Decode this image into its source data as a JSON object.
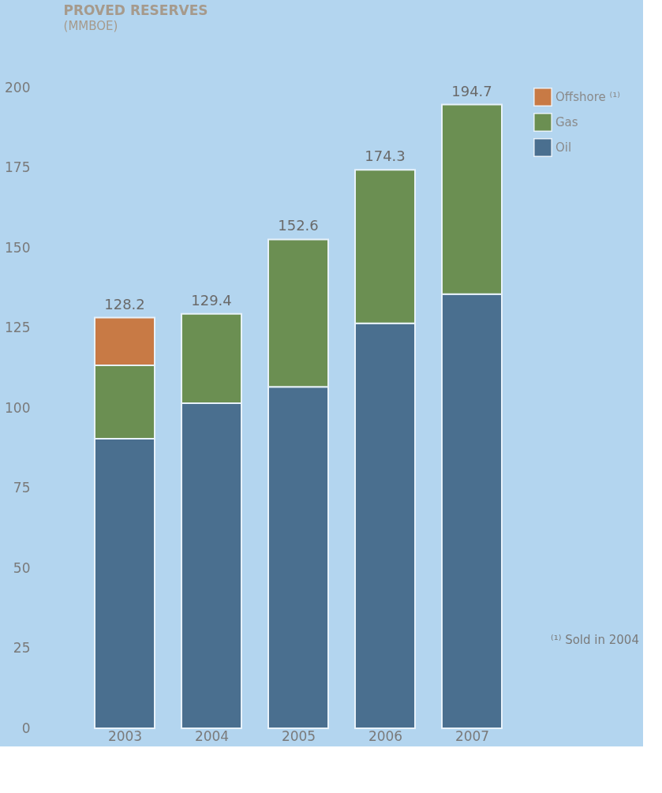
{
  "chart_data": {
    "type": "bar",
    "title": "PROVED RESERVES",
    "subtitle": "(MMBOE)",
    "categories": [
      "2003",
      "2004",
      "2005",
      "2006",
      "2007"
    ],
    "stacked": true,
    "series": [
      {
        "name": "Oil",
        "color": "#4a6f8f",
        "values": [
          90.4,
          101.5,
          106.6,
          126.4,
          135.5
        ]
      },
      {
        "name": "Gas",
        "color": "#6b8f52",
        "values": [
          22.9,
          27.9,
          46.0,
          47.9,
          59.2
        ]
      },
      {
        "name": "Offshore ⁽¹⁾",
        "color": "#c87a45",
        "values": [
          14.9,
          null,
          null,
          null,
          null
        ]
      }
    ],
    "totals": [
      "128.2",
      "129.4",
      "152.6",
      "174.3",
      "194.7"
    ],
    "ylim": [
      0,
      200
    ],
    "yticks": [
      0,
      25,
      50,
      75,
      100,
      125,
      150,
      175,
      200
    ],
    "grid": false,
    "legend": "right",
    "annotations": [
      "⁽¹⁾ Sold in 2004"
    ]
  }
}
